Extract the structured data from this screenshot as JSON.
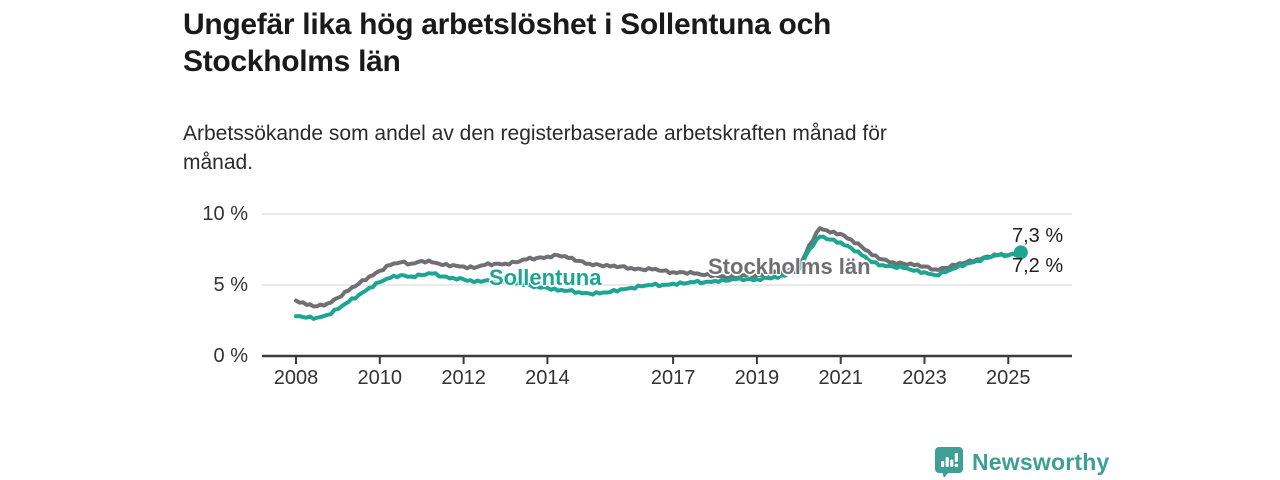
{
  "title": "Ungefär lika hög arbetslöshet i Sollentuna och Stockholms län",
  "title_lines": [
    "Ungefär lika hög arbetslöshet i Sollentuna och",
    "Stockholms län"
  ],
  "subtitle": "Arbetssökande som andel av den registerbaserade arbetskraften månad för månad.",
  "subtitle_lines": [
    "Arbetssökande som andel av den registerbaserade arbetskraften månad för",
    "månad."
  ],
  "annotations": {
    "sollentuna_label": "Sollentuna",
    "stockholm_label": "Stockholms län",
    "end_label_top": "7,3 %",
    "end_label_bottom": "7,2 %"
  },
  "colors": {
    "sollentuna": "#1ca593",
    "stockholm": "#6f6f74",
    "grid": "#e3e3e3",
    "axis": "#3a3a3a",
    "brand": "#3f9e96"
  },
  "branding": {
    "name": "Newsworthy",
    "icon": "bar-chart-bubble-icon"
  },
  "chart_data": {
    "type": "line",
    "unit": "percent",
    "title": "Ungefär lika hög arbetslöshet i Sollentuna och Stockholms län",
    "subtitle": "Arbetssökande som andel av den registerbaserade arbetskraften månad för månad.",
    "grid": "horizontal-only",
    "legend_position": "inline-labels",
    "x_axis": {
      "range": [
        2007.2,
        2026.5
      ],
      "ticks": [
        2008,
        2010,
        2012,
        2014,
        2017,
        2019,
        2021,
        2023,
        2025
      ]
    },
    "y_axis": {
      "range": [
        0,
        11.3
      ],
      "gridlines": [
        5,
        10
      ],
      "ticks": [
        {
          "value": 0,
          "label": "0 %"
        },
        {
          "value": 5,
          "label": "5 %"
        },
        {
          "value": 10,
          "label": "10 %"
        }
      ]
    },
    "series": [
      {
        "name": "Stockholms län",
        "color": "#6f6f74",
        "end_label": "7,2 %",
        "end_value": 7.2,
        "end_dot": false,
        "points": [
          [
            2008.0,
            3.9
          ],
          [
            2008.25,
            3.6
          ],
          [
            2008.5,
            3.5
          ],
          [
            2008.75,
            3.7
          ],
          [
            2009.0,
            4.1
          ],
          [
            2009.25,
            4.6
          ],
          [
            2009.5,
            5.1
          ],
          [
            2009.75,
            5.6
          ],
          [
            2010.0,
            6.0
          ],
          [
            2010.25,
            6.4
          ],
          [
            2010.5,
            6.6
          ],
          [
            2010.75,
            6.5
          ],
          [
            2011.0,
            6.7
          ],
          [
            2011.25,
            6.6
          ],
          [
            2011.5,
            6.4
          ],
          [
            2011.75,
            6.4
          ],
          [
            2012.0,
            6.3
          ],
          [
            2012.25,
            6.2
          ],
          [
            2012.5,
            6.4
          ],
          [
            2012.75,
            6.5
          ],
          [
            2013.0,
            6.5
          ],
          [
            2013.25,
            6.6
          ],
          [
            2013.5,
            6.8
          ],
          [
            2013.75,
            6.9
          ],
          [
            2014.0,
            7.0
          ],
          [
            2014.25,
            7.1
          ],
          [
            2014.5,
            6.9
          ],
          [
            2014.75,
            6.7
          ],
          [
            2015.0,
            6.5
          ],
          [
            2015.25,
            6.4
          ],
          [
            2015.5,
            6.3
          ],
          [
            2015.75,
            6.3
          ],
          [
            2016.0,
            6.2
          ],
          [
            2016.25,
            6.1
          ],
          [
            2016.5,
            6.1
          ],
          [
            2016.75,
            6.0
          ],
          [
            2017.0,
            5.9
          ],
          [
            2017.25,
            5.9
          ],
          [
            2017.5,
            5.8
          ],
          [
            2017.75,
            5.7
          ],
          [
            2018.0,
            5.7
          ],
          [
            2018.25,
            5.6
          ],
          [
            2018.5,
            5.6
          ],
          [
            2018.75,
            5.7
          ],
          [
            2019.0,
            5.7
          ],
          [
            2019.25,
            5.8
          ],
          [
            2019.5,
            5.9
          ],
          [
            2019.75,
            6.0
          ],
          [
            2020.0,
            6.2
          ],
          [
            2020.25,
            7.8
          ],
          [
            2020.5,
            9.0
          ],
          [
            2020.75,
            8.7
          ],
          [
            2021.0,
            8.6
          ],
          [
            2021.25,
            8.2
          ],
          [
            2021.5,
            7.7
          ],
          [
            2021.75,
            7.1
          ],
          [
            2022.0,
            6.8
          ],
          [
            2022.25,
            6.6
          ],
          [
            2022.5,
            6.5
          ],
          [
            2022.75,
            6.4
          ],
          [
            2023.0,
            6.3
          ],
          [
            2023.25,
            6.1
          ],
          [
            2023.5,
            6.2
          ],
          [
            2023.75,
            6.4
          ],
          [
            2024.0,
            6.6
          ],
          [
            2024.25,
            6.8
          ],
          [
            2024.5,
            7.0
          ],
          [
            2024.75,
            7.1
          ],
          [
            2025.0,
            7.1
          ],
          [
            2025.3,
            7.2
          ]
        ]
      },
      {
        "name": "Sollentuna",
        "color": "#1ca593",
        "end_label": "7,3 %",
        "end_value": 7.3,
        "end_dot": true,
        "points": [
          [
            2008.0,
            2.8
          ],
          [
            2008.25,
            2.7
          ],
          [
            2008.5,
            2.7
          ],
          [
            2008.75,
            2.9
          ],
          [
            2009.0,
            3.3
          ],
          [
            2009.25,
            3.8
          ],
          [
            2009.5,
            4.3
          ],
          [
            2009.75,
            4.8
          ],
          [
            2010.0,
            5.2
          ],
          [
            2010.25,
            5.5
          ],
          [
            2010.5,
            5.7
          ],
          [
            2010.75,
            5.6
          ],
          [
            2011.0,
            5.7
          ],
          [
            2011.25,
            5.8
          ],
          [
            2011.5,
            5.6
          ],
          [
            2011.75,
            5.5
          ],
          [
            2012.0,
            5.4
          ],
          [
            2012.25,
            5.2
          ],
          [
            2012.5,
            5.3
          ],
          [
            2012.75,
            5.3
          ],
          [
            2013.0,
            5.2
          ],
          [
            2013.25,
            5.1
          ],
          [
            2013.5,
            5.0
          ],
          [
            2013.75,
            4.9
          ],
          [
            2014.0,
            4.8
          ],
          [
            2014.25,
            4.6
          ],
          [
            2014.5,
            4.6
          ],
          [
            2014.75,
            4.5
          ],
          [
            2015.0,
            4.4
          ],
          [
            2015.25,
            4.4
          ],
          [
            2015.5,
            4.5
          ],
          [
            2015.75,
            4.7
          ],
          [
            2016.0,
            4.8
          ],
          [
            2016.25,
            4.9
          ],
          [
            2016.5,
            5.0
          ],
          [
            2016.75,
            5.0
          ],
          [
            2017.0,
            5.1
          ],
          [
            2017.25,
            5.1
          ],
          [
            2017.5,
            5.2
          ],
          [
            2017.75,
            5.2
          ],
          [
            2018.0,
            5.3
          ],
          [
            2018.25,
            5.3
          ],
          [
            2018.5,
            5.4
          ],
          [
            2018.75,
            5.4
          ],
          [
            2019.0,
            5.4
          ],
          [
            2019.25,
            5.5
          ],
          [
            2019.5,
            5.5
          ],
          [
            2019.75,
            5.8
          ],
          [
            2020.0,
            6.1
          ],
          [
            2020.25,
            7.5
          ],
          [
            2020.5,
            8.4
          ],
          [
            2020.75,
            8.2
          ],
          [
            2021.0,
            8.0
          ],
          [
            2021.25,
            7.6
          ],
          [
            2021.5,
            7.1
          ],
          [
            2021.75,
            6.6
          ],
          [
            2022.0,
            6.4
          ],
          [
            2022.25,
            6.3
          ],
          [
            2022.5,
            6.2
          ],
          [
            2022.75,
            6.0
          ],
          [
            2023.0,
            5.9
          ],
          [
            2023.25,
            5.7
          ],
          [
            2023.5,
            5.9
          ],
          [
            2023.75,
            6.2
          ],
          [
            2024.0,
            6.5
          ],
          [
            2024.25,
            6.7
          ],
          [
            2024.5,
            6.9
          ],
          [
            2024.75,
            7.1
          ],
          [
            2025.0,
            7.1
          ],
          [
            2025.3,
            7.3
          ]
        ]
      }
    ]
  }
}
